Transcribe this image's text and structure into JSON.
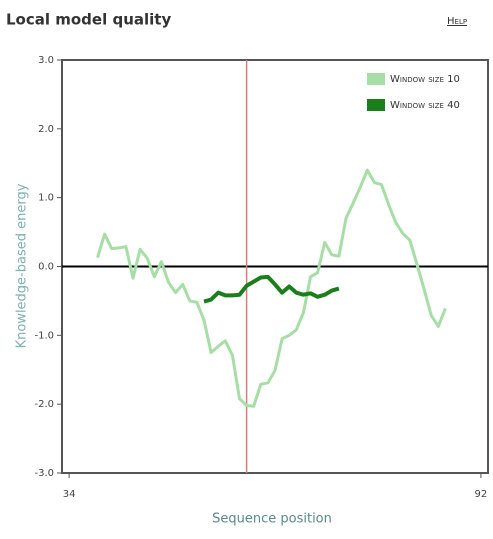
{
  "chart_data": {
    "type": "line",
    "title": "Local model quality",
    "help": "Help",
    "xlabel": "Sequence position",
    "ylabel": "Knowledge-based energy",
    "x": [
      38,
      39,
      40,
      41,
      42,
      43,
      44,
      45,
      46,
      47,
      48,
      49,
      50,
      51,
      52,
      53,
      54,
      55,
      56,
      57,
      58,
      59,
      60,
      61,
      62,
      63,
      64,
      65,
      66,
      67,
      68,
      69,
      70,
      71,
      72,
      73,
      74,
      75,
      76,
      77,
      78,
      79,
      80,
      81,
      82,
      83,
      84,
      85,
      86,
      87
    ],
    "series": [
      {
        "name": "Window size 10",
        "color": "#a6dea6",
        "values": [
          0.13,
          0.47,
          0.26,
          0.27,
          0.29,
          -0.17,
          0.25,
          0.12,
          -0.15,
          0.07,
          -0.23,
          -0.38,
          -0.26,
          -0.5,
          -0.52,
          -0.78,
          -1.25,
          -1.16,
          -1.08,
          -1.29,
          -1.92,
          -2.02,
          -2.03,
          -1.71,
          -1.69,
          -1.51,
          -1.05,
          -1.0,
          -0.92,
          -0.67,
          -0.15,
          -0.09,
          0.35,
          0.17,
          0.15,
          0.7,
          0.92,
          1.15,
          1.4,
          1.22,
          1.19,
          0.9,
          0.64,
          0.48,
          0.38,
          0.03,
          -0.33,
          -0.71,
          -0.87,
          -0.61
        ]
      },
      {
        "name": "Window size 40",
        "color": "#1a7f1a",
        "values": [
          null,
          null,
          null,
          null,
          null,
          null,
          null,
          null,
          null,
          null,
          null,
          null,
          null,
          null,
          null,
          -0.51,
          -0.48,
          -0.38,
          -0.42,
          -0.42,
          -0.41,
          -0.28,
          -0.22,
          -0.16,
          -0.15,
          -0.26,
          -0.38,
          -0.29,
          -0.38,
          -0.41,
          -0.39,
          -0.44,
          -0.41,
          -0.35,
          -0.32,
          null,
          null,
          null,
          null,
          null,
          null,
          null,
          null,
          null,
          null,
          null,
          null,
          null,
          null,
          null
        ]
      }
    ],
    "xlim": [
      33,
      93
    ],
    "ylim": [
      -3,
      3
    ],
    "xticks": [
      34,
      92
    ],
    "yticks": [
      {
        "value": -3,
        "label": "-3.0"
      },
      {
        "value": -2,
        "label": "-2.0"
      },
      {
        "value": -1,
        "label": "-1.0"
      },
      {
        "value": 0,
        "label": "0.0"
      },
      {
        "value": 1,
        "label": "1.0"
      },
      {
        "value": 2,
        "label": "2.0"
      },
      {
        "value": 3,
        "label": "3.0"
      }
    ],
    "marker_x": 59,
    "legend": "upper right"
  }
}
